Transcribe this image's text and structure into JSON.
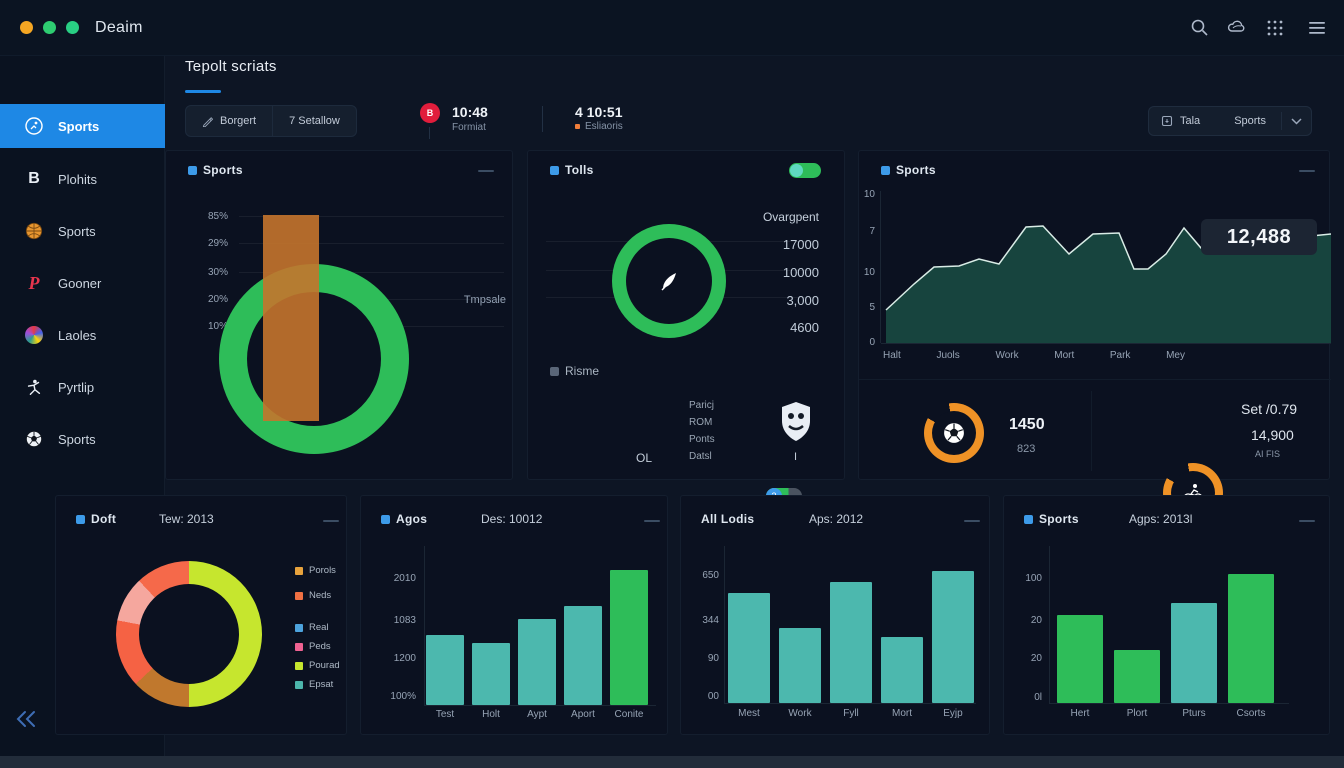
{
  "app": {
    "title": "Deaim"
  },
  "header": {
    "title": "Tepolt scriats"
  },
  "toolbar": {
    "buttons": [
      {
        "label": "Borgert"
      },
      {
        "label": "7 Setallow"
      }
    ],
    "stats": [
      {
        "badge": "B",
        "value": "10:48",
        "label": "Formiat"
      },
      {
        "value": "4 10:51",
        "label": "Esliaoris"
      }
    ],
    "selector": {
      "source": "Tala",
      "selected": "Sports"
    }
  },
  "sidebar": {
    "items": [
      {
        "label": "Sports"
      },
      {
        "label": "Plohits"
      },
      {
        "label": "Sports"
      },
      {
        "label": "Gooner"
      },
      {
        "label": "Laoles"
      },
      {
        "label": "Pyrtlip"
      },
      {
        "label": "Sports"
      }
    ]
  },
  "panels": {
    "sports_mix": {
      "title": "Sports"
    },
    "tolls": {
      "title": "Tolls",
      "risme_label": "Risme",
      "toggle_badge": "3",
      "flag_caption": "OL",
      "team_lines": [
        "Paricj",
        "ROM",
        "Ponts",
        "Datsl"
      ],
      "crest_caption": "I"
    },
    "sports_area": {
      "title": "Sports"
    },
    "doft": {
      "title": "Doft",
      "subtitle": "Tew: 2013",
      "legend": [
        {
          "label": "Porols",
          "color": "#e8a33d"
        },
        {
          "label": "Neds",
          "color": "#f07043"
        },
        {
          "label": "Real",
          "color": "#4da3dd"
        },
        {
          "label": "Peds",
          "color": "#f06292"
        },
        {
          "label": "Pourad",
          "color": "#c6e62e"
        },
        {
          "label": "Epsat",
          "color": "#4db6ac"
        }
      ]
    },
    "agos": {
      "title": "Agos",
      "subtitle": "Des: 10012"
    },
    "all_lodis": {
      "title": "All Lodis",
      "subtitle": "Aps: 2012"
    },
    "sports_bars": {
      "title": "Sports",
      "subtitle": "Agps: 2013l"
    }
  },
  "chart_data": [
    {
      "id": "sports_mix",
      "type": "donut",
      "segments": [
        {
          "color": "#2ebd59",
          "pct": 100
        }
      ],
      "bar_color": "rgba(196,116,44,0.9)",
      "y_ticks": [
        "85%",
        "29%",
        "30%",
        "20%",
        "10%"
      ],
      "annotation": "Tmpsale"
    },
    {
      "id": "tolls_ring",
      "type": "donut",
      "segments": [
        {
          "color": "#2ebd59",
          "pct": 100
        }
      ],
      "header": "Ovargpent",
      "values": [
        "17000",
        "10000",
        "3,000",
        "4600"
      ]
    },
    {
      "id": "sports_area",
      "type": "area",
      "badge": "12,488",
      "y_ticks": [
        "10",
        "7",
        "10",
        "5",
        "0"
      ],
      "x_ticks": [
        "Halt",
        "Juols",
        "Work",
        "Mort",
        "Park",
        "Mey"
      ],
      "fill": "#17443e",
      "line": "#d9ece6",
      "points": [
        [
          5,
          119
        ],
        [
          33,
          93
        ],
        [
          53,
          76
        ],
        [
          78,
          75
        ],
        [
          98,
          68
        ],
        [
          118,
          73
        ],
        [
          145,
          36
        ],
        [
          162,
          35
        ],
        [
          188,
          63
        ],
        [
          212,
          43
        ],
        [
          238,
          42
        ],
        [
          253,
          78
        ],
        [
          267,
          78
        ],
        [
          285,
          63
        ],
        [
          303,
          37
        ],
        [
          320,
          57
        ],
        [
          338,
          60
        ],
        [
          365,
          58
        ],
        [
          400,
          50
        ],
        [
          430,
          45
        ],
        [
          450,
          43
        ]
      ]
    },
    {
      "id": "kpi1_ring",
      "type": "donut",
      "segments": [
        {
          "color": "#ef9226",
          "pct": 86
        },
        {
          "color": "#0b1120",
          "pct": 14
        }
      ],
      "value": "1450",
      "sub": "823"
    },
    {
      "id": "kpi2_ring",
      "type": "donut",
      "segments": [
        {
          "color": "#ef9226",
          "pct": 86
        },
        {
          "color": "#0b1120",
          "pct": 14
        }
      ],
      "lines": [
        "Set /0.79",
        "14,900",
        "AI FIS"
      ]
    },
    {
      "id": "doft_donut",
      "type": "pie",
      "segments": [
        {
          "color": "#c6e62e",
          "pct": 50
        },
        {
          "color": "#c0782d",
          "pct": 13
        },
        {
          "color": "#f56244",
          "pct": 15
        },
        {
          "color": "#f5a79e",
          "pct": 10
        },
        {
          "color": "#f5694a",
          "pct": 12
        }
      ]
    },
    {
      "id": "agos_bars",
      "type": "bar",
      "y_ticks": [
        "2010",
        "1083",
        "1200",
        "100%"
      ],
      "x_ticks": [
        "Test",
        "Holt",
        "Aypt",
        "Aport",
        "Conite"
      ],
      "bars": [
        {
          "pct": 44,
          "color": "#4cb8ae"
        },
        {
          "pct": 39,
          "color": "#4cb8ae"
        },
        {
          "pct": 54,
          "color": "#4cb8ae"
        },
        {
          "pct": 62,
          "color": "#4cb8ae"
        },
        {
          "pct": 85,
          "color": "#2ebd59"
        }
      ]
    },
    {
      "id": "lodis_bars",
      "type": "bar",
      "y_ticks": [
        "650",
        "344",
        "90",
        "00"
      ],
      "x_ticks": [
        "Mest",
        "Work",
        "Fyll",
        "Mort",
        "Eyjp"
      ],
      "bars": [
        {
          "pct": 70,
          "color": "#4cb8ae"
        },
        {
          "pct": 48,
          "color": "#4cb8ae"
        },
        {
          "pct": 77,
          "color": "#4cb8ae"
        },
        {
          "pct": 42,
          "color": "#4cb8ae"
        },
        {
          "pct": 84,
          "color": "#4cb8ae"
        }
      ]
    },
    {
      "id": "sports_bars",
      "type": "bar",
      "y_ticks": [
        "100",
        "20",
        "20",
        "0l"
      ],
      "x_ticks": [
        "Hert",
        "Plort",
        "Pturs",
        "Csorts"
      ],
      "bars": [
        {
          "pct": 56,
          "color": "#2ebd59"
        },
        {
          "pct": 34,
          "color": "#2ebd59"
        },
        {
          "pct": 64,
          "color": "#4cb8ae"
        },
        {
          "pct": 82,
          "color": "#2ebd59"
        }
      ]
    }
  ]
}
